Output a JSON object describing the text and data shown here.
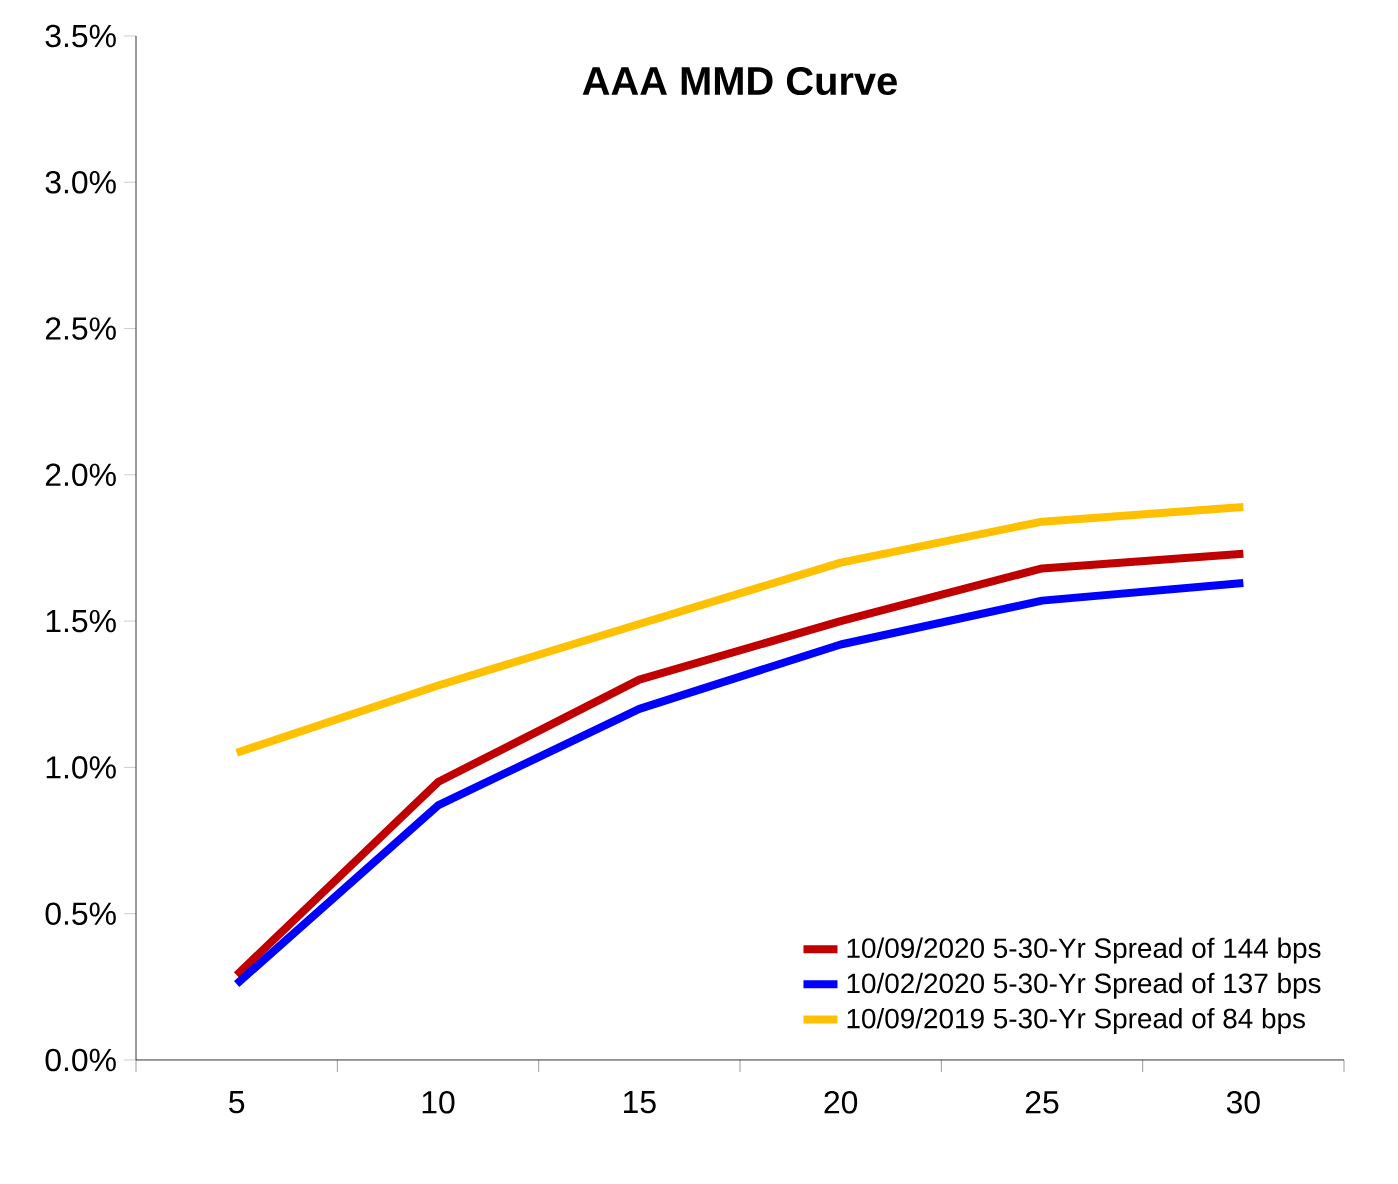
{
  "chart_data": {
    "type": "line",
    "title": "AAA MMD Curve",
    "categories": [
      "5",
      "10",
      "15",
      "20",
      "25",
      "30"
    ],
    "series": [
      {
        "name": "10/09/2020 5-30-Yr Spread of 144 bps",
        "color": "#c00000",
        "values": [
          0.29,
          0.95,
          1.3,
          1.5,
          1.68,
          1.73
        ]
      },
      {
        "name": "10/02/2020 5-30-Yr Spread of 137 bps",
        "color": "#0000ff",
        "values": [
          0.26,
          0.87,
          1.2,
          1.42,
          1.57,
          1.63
        ]
      },
      {
        "name": "10/09/2019 5-30-Yr Spread of 84 bps",
        "color": "#ffc000",
        "values": [
          1.05,
          1.28,
          1.49,
          1.7,
          1.84,
          1.89
        ]
      }
    ],
    "ylim": [
      0,
      3.5
    ],
    "yticks": [
      {
        "value": 0,
        "label": "0.0%"
      },
      {
        "value": 0.5,
        "label": "0.5%"
      },
      {
        "value": 1,
        "label": "1.0%"
      },
      {
        "value": 1.5,
        "label": "1.5%"
      },
      {
        "value": 2,
        "label": "2.0%"
      },
      {
        "value": 2.5,
        "label": "2.5%"
      },
      {
        "value": 3,
        "label": "3.0%"
      },
      {
        "value": 3.5,
        "label": "3.5%"
      }
    ],
    "grid": false,
    "legend": "bottom right",
    "marker": "none",
    "line_style": "solid"
  }
}
